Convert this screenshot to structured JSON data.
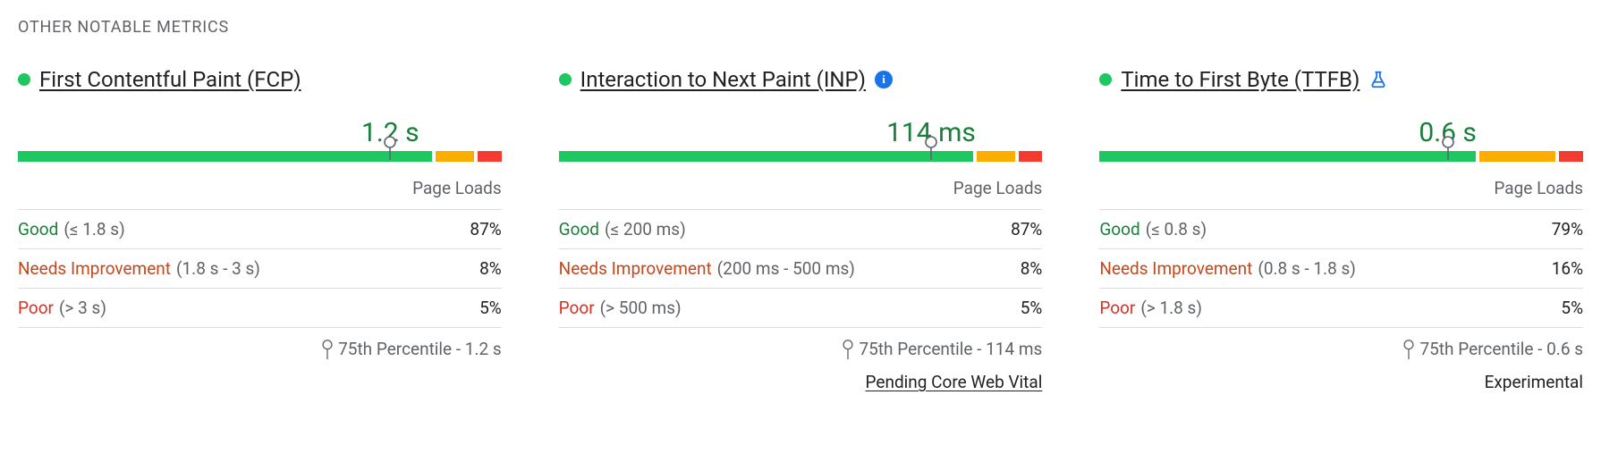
{
  "section_title": "OTHER NOTABLE METRICS",
  "colors": {
    "good": "#1ec760",
    "needs": "#fbad00",
    "poor": "#f33b2f",
    "value_good": "#188038",
    "text_good": "#188038",
    "text_needs": "#c5471c",
    "text_poor": "#d93025",
    "muted": "#5f6368",
    "divider": "#dadce0",
    "link": "#1a73e8"
  },
  "column_header": "Page Loads",
  "percentile_prefix": "75th Percentile -",
  "metrics": [
    {
      "id": "fcp",
      "name": "First Contentful Paint (FCP)",
      "status": "good",
      "value": "1.2 s",
      "marker_pct": 77,
      "badge": null,
      "segments": [
        {
          "kind": "good",
          "pct": 87
        },
        {
          "kind": "needs",
          "pct": 8
        },
        {
          "kind": "poor",
          "pct": 5
        }
      ],
      "rows": [
        {
          "kind": "good",
          "name": "Good",
          "range": "(≤ 1.8 s)",
          "value": "87%"
        },
        {
          "kind": "needs",
          "name": "Needs Improvement",
          "range": "(1.8 s - 3 s)",
          "value": "8%"
        },
        {
          "kind": "poor",
          "name": "Poor",
          "range": "(> 3 s)",
          "value": "5%"
        }
      ],
      "percentile_value": "1.2 s",
      "footnote": null
    },
    {
      "id": "inp",
      "name": "Interaction to Next Paint (INP)",
      "status": "good",
      "value": "114 ms",
      "marker_pct": 77,
      "badge": "info",
      "segments": [
        {
          "kind": "good",
          "pct": 87
        },
        {
          "kind": "needs",
          "pct": 8
        },
        {
          "kind": "poor",
          "pct": 5
        }
      ],
      "rows": [
        {
          "kind": "good",
          "name": "Good",
          "range": "(≤ 200 ms)",
          "value": "87%"
        },
        {
          "kind": "needs",
          "name": "Needs Improvement",
          "range": "(200 ms - 500 ms)",
          "value": "8%"
        },
        {
          "kind": "poor",
          "name": "Poor",
          "range": "(> 500 ms)",
          "value": "5%"
        }
      ],
      "percentile_value": "114 ms",
      "footnote": {
        "text": "Pending Core Web Vital",
        "link": true
      }
    },
    {
      "id": "ttfb",
      "name": "Time to First Byte (TTFB)",
      "status": "good",
      "value": "0.6 s",
      "marker_pct": 72,
      "badge": "flask",
      "segments": [
        {
          "kind": "good",
          "pct": 79
        },
        {
          "kind": "needs",
          "pct": 16
        },
        {
          "kind": "poor",
          "pct": 5
        }
      ],
      "rows": [
        {
          "kind": "good",
          "name": "Good",
          "range": "(≤ 0.8 s)",
          "value": "79%"
        },
        {
          "kind": "needs",
          "name": "Needs Improvement",
          "range": "(0.8 s - 1.8 s)",
          "value": "16%"
        },
        {
          "kind": "poor",
          "name": "Poor",
          "range": "(> 1.8 s)",
          "value": "5%"
        }
      ],
      "percentile_value": "0.6 s",
      "footnote": {
        "text": "Experimental",
        "link": false
      }
    }
  ]
}
